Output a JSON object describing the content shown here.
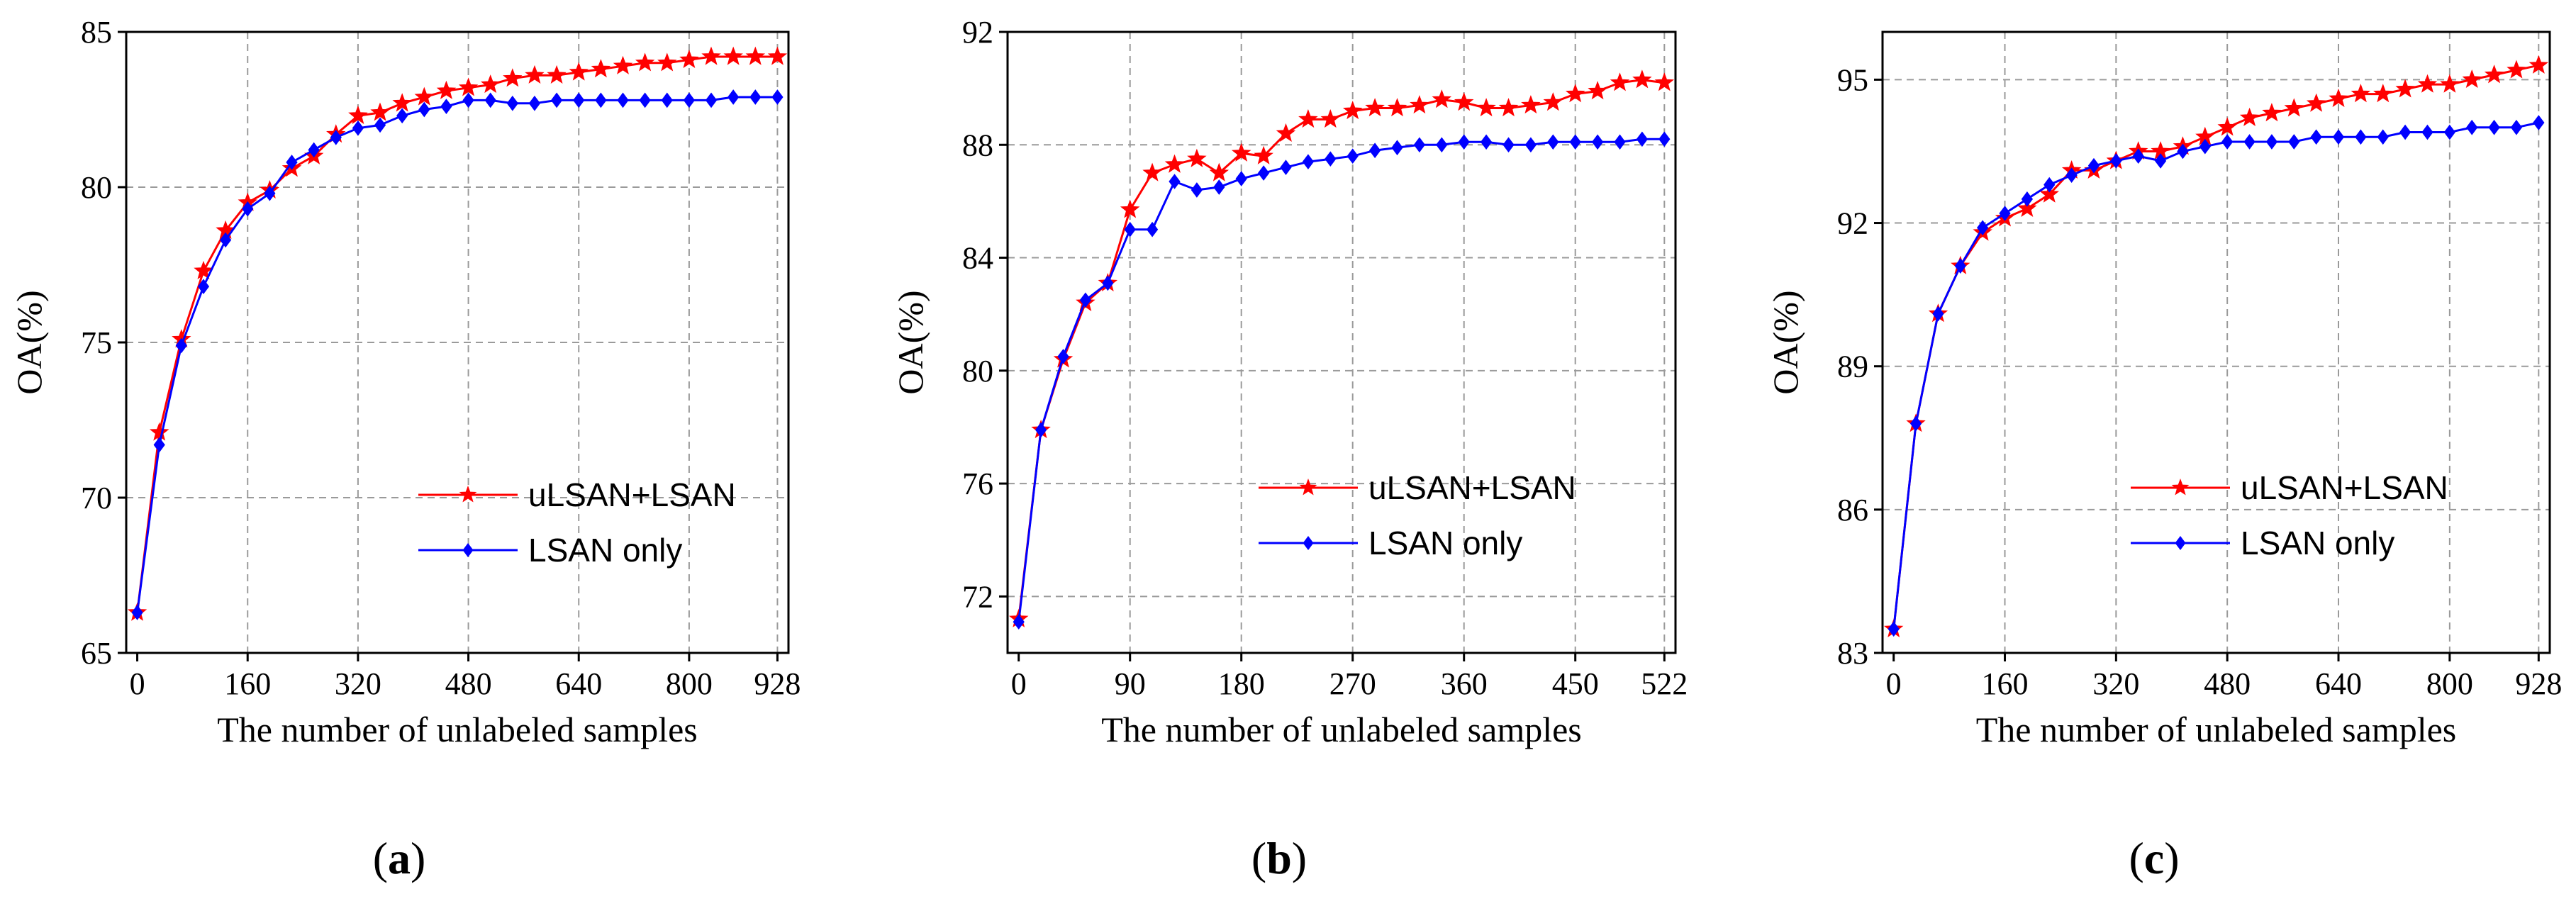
{
  "chart_data": [
    {
      "type": "line",
      "caption": "a",
      "xlabel": "The number of unlabeled samples",
      "ylabel": "OA(%)",
      "xlim": [
        -16,
        944
      ],
      "ylim": [
        65,
        85
      ],
      "xticks": [
        0,
        160,
        320,
        480,
        640,
        800,
        928
      ],
      "yticks": [
        65,
        70,
        75,
        80,
        85
      ],
      "grid": true,
      "legend_position": "lower-right",
      "series": [
        {
          "name": "uLSAN+LSAN",
          "color": "#ff0000",
          "marker": "star",
          "x": [
            0,
            32,
            64,
            96,
            128,
            160,
            192,
            224,
            256,
            288,
            320,
            352,
            384,
            416,
            448,
            480,
            512,
            544,
            576,
            608,
            640,
            672,
            704,
            736,
            768,
            800,
            832,
            864,
            896,
            928
          ],
          "y": [
            66.3,
            72.1,
            75.1,
            77.3,
            78.6,
            79.5,
            79.9,
            80.6,
            81.0,
            81.7,
            82.3,
            82.4,
            82.7,
            82.9,
            83.1,
            83.2,
            83.3,
            83.5,
            83.6,
            83.6,
            83.7,
            83.8,
            83.9,
            84.0,
            84.0,
            84.1,
            84.2,
            84.2,
            84.2,
            84.2
          ]
        },
        {
          "name": "LSAN only",
          "color": "#0000ff",
          "marker": "diamond",
          "x": [
            0,
            32,
            64,
            96,
            128,
            160,
            192,
            224,
            256,
            288,
            320,
            352,
            384,
            416,
            448,
            480,
            512,
            544,
            576,
            608,
            640,
            672,
            704,
            736,
            768,
            800,
            832,
            864,
            896,
            928
          ],
          "y": [
            66.3,
            71.7,
            74.9,
            76.8,
            78.3,
            79.3,
            79.8,
            80.8,
            81.2,
            81.6,
            81.9,
            82.0,
            82.3,
            82.5,
            82.6,
            82.8,
            82.8,
            82.7,
            82.7,
            82.8,
            82.8,
            82.8,
            82.8,
            82.8,
            82.8,
            82.8,
            82.8,
            82.9,
            82.9,
            82.9
          ]
        }
      ]
    },
    {
      "type": "line",
      "caption": "b",
      "xlabel": "The number of unlabeled samples",
      "ylabel": "OA(%)",
      "xlim": [
        -9,
        531
      ],
      "ylim": [
        70,
        92
      ],
      "xticks": [
        0,
        90,
        180,
        270,
        360,
        450,
        522
      ],
      "yticks": [
        72,
        76,
        80,
        84,
        88,
        92
      ],
      "grid": true,
      "legend_position": "lower-right",
      "series": [
        {
          "name": "uLSAN+LSAN",
          "color": "#ff0000",
          "marker": "star",
          "x": [
            0,
            18,
            36,
            54,
            72,
            90,
            108,
            126,
            144,
            162,
            180,
            198,
            216,
            234,
            252,
            270,
            288,
            306,
            324,
            342,
            360,
            378,
            396,
            414,
            432,
            450,
            468,
            486,
            504,
            522
          ],
          "y": [
            71.2,
            77.9,
            80.4,
            82.4,
            83.1,
            85.7,
            87.0,
            87.3,
            87.5,
            87.0,
            87.7,
            87.6,
            88.4,
            88.9,
            88.9,
            89.2,
            89.3,
            89.3,
            89.4,
            89.6,
            89.5,
            89.3,
            89.3,
            89.4,
            89.5,
            89.8,
            89.9,
            90.2,
            90.3,
            90.2
          ]
        },
        {
          "name": "LSAN only",
          "color": "#0000ff",
          "marker": "diamond",
          "x": [
            0,
            18,
            36,
            54,
            72,
            90,
            108,
            126,
            144,
            162,
            180,
            198,
            216,
            234,
            252,
            270,
            288,
            306,
            324,
            342,
            360,
            378,
            396,
            414,
            432,
            450,
            468,
            486,
            504,
            522
          ],
          "y": [
            71.1,
            77.9,
            80.5,
            82.5,
            83.1,
            85.0,
            85.0,
            86.7,
            86.4,
            86.5,
            86.8,
            87.0,
            87.2,
            87.4,
            87.5,
            87.6,
            87.8,
            87.9,
            88.0,
            88.0,
            88.1,
            88.1,
            88.0,
            88.0,
            88.1,
            88.1,
            88.1,
            88.1,
            88.2,
            88.2
          ]
        }
      ]
    },
    {
      "type": "line",
      "caption": "c",
      "xlabel": "The number of unlabeled samples",
      "ylabel": "OA(%)",
      "xlim": [
        -16,
        944
      ],
      "ylim": [
        83,
        96
      ],
      "xticks": [
        0,
        160,
        320,
        480,
        640,
        800,
        928
      ],
      "yticks": [
        83,
        86,
        89,
        92,
        95
      ],
      "grid": true,
      "legend_position": "lower-right",
      "series": [
        {
          "name": "uLSAN+LSAN",
          "color": "#ff0000",
          "marker": "star",
          "x": [
            0,
            32,
            64,
            96,
            128,
            160,
            192,
            224,
            256,
            288,
            320,
            352,
            384,
            416,
            448,
            480,
            512,
            544,
            576,
            608,
            640,
            672,
            704,
            736,
            768,
            800,
            832,
            864,
            896,
            928
          ],
          "y": [
            83.5,
            87.8,
            90.1,
            91.1,
            91.8,
            92.1,
            92.3,
            92.6,
            93.1,
            93.1,
            93.3,
            93.5,
            93.5,
            93.6,
            93.8,
            94.0,
            94.2,
            94.3,
            94.4,
            94.5,
            94.6,
            94.7,
            94.7,
            94.8,
            94.9,
            94.9,
            95.0,
            95.1,
            95.2,
            95.3
          ]
        },
        {
          "name": "LSAN only",
          "color": "#0000ff",
          "marker": "diamond",
          "x": [
            0,
            32,
            64,
            96,
            128,
            160,
            192,
            224,
            256,
            288,
            320,
            352,
            384,
            416,
            448,
            480,
            512,
            544,
            576,
            608,
            640,
            672,
            704,
            736,
            768,
            800,
            832,
            864,
            896,
            928
          ],
          "y": [
            83.5,
            87.8,
            90.1,
            91.1,
            91.9,
            92.2,
            92.5,
            92.8,
            93.0,
            93.2,
            93.3,
            93.4,
            93.3,
            93.5,
            93.6,
            93.7,
            93.7,
            93.7,
            93.7,
            93.8,
            93.8,
            93.8,
            93.8,
            93.9,
            93.9,
            93.9,
            94.0,
            94.0,
            94.0,
            94.1
          ]
        }
      ]
    }
  ]
}
